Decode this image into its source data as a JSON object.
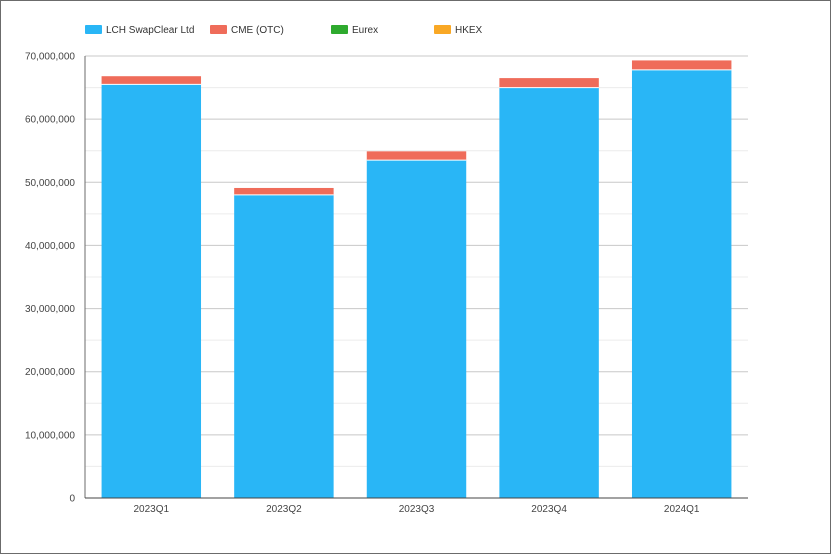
{
  "chart_data": {
    "type": "bar",
    "stacked": true,
    "categories": [
      "2023Q1",
      "2023Q2",
      "2023Q3",
      "2023Q4",
      "2024Q1"
    ],
    "series": [
      {
        "name": "LCH SwapClear Ltd",
        "color": "#29b6f6",
        "values": [
          65500000,
          48000000,
          53500000,
          65000000,
          67800000
        ]
      },
      {
        "name": "CME (OTC)",
        "color": "#ef6c5a",
        "values": [
          1300000,
          1100000,
          1400000,
          1500000,
          1500000
        ]
      },
      {
        "name": "Eurex",
        "color": "#2eaa2e",
        "values": [
          0,
          0,
          0,
          0,
          0
        ]
      },
      {
        "name": "HKEX",
        "color": "#f9a825",
        "values": [
          0,
          0,
          0,
          0,
          0
        ]
      }
    ],
    "y_ticks": [
      "0",
      "10,000,000",
      "20,000,000",
      "30,000,000",
      "40,000,000",
      "50,000,000",
      "60,000,000",
      "70,000,000"
    ],
    "ylim": [
      0,
      70000000
    ],
    "legend_position": "top-left",
    "grid": true
  }
}
